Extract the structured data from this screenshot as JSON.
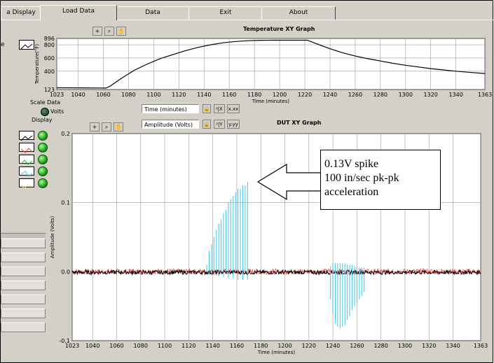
{
  "tabs": [
    {
      "label": "a Display"
    },
    {
      "label": "Load Data"
    },
    {
      "label": "Data"
    },
    {
      "label": "Exit"
    },
    {
      "label": "About"
    }
  ],
  "temp_graph": {
    "title": "Temperature XY Graph",
    "ylabel": "Temperature(°F)",
    "xlabel": "Time (minutes)"
  },
  "dut_graph": {
    "title": "DUT XY Graph",
    "ylabel": "Amplitude (Volts)",
    "xlabel": "Time (minutes)"
  },
  "controls": {
    "scale_data_label": "Scale Data",
    "volts_label": "Volts",
    "display_label": "Display",
    "x_field": "Time (minutes)",
    "y_field": "Amplitude (Volts)",
    "x_format_btn": "x.xx",
    "y_format_btn": "y.yy",
    "x_scale_btn": "ᵡ|X",
    "y_scale_btn": "ᵡ|Y"
  },
  "callout": {
    "line1": "0.13V spike",
    "line2": "100 in/sec pk-pk",
    "line3": "acceleration"
  },
  "chart_data": [
    {
      "type": "line",
      "title": "Temperature XY Graph",
      "xlabel": "Time (minutes)",
      "ylabel": "Temperature(°F)",
      "xlim": [
        1023,
        1363
      ],
      "ylim": [
        123,
        896
      ],
      "x_ticks": [
        1023,
        1040,
        1060,
        1080,
        1100,
        1120,
        1140,
        1160,
        1180,
        1200,
        1220,
        1240,
        1260,
        1280,
        1300,
        1320,
        1340,
        1363
      ],
      "y_ticks": [
        123,
        400,
        600,
        800,
        896
      ],
      "series": [
        {
          "color": "#000000",
          "x": [
            1023,
            1040,
            1055,
            1062,
            1065,
            1075,
            1085,
            1095,
            1105,
            1115,
            1125,
            1135,
            1145,
            1155,
            1165,
            1175,
            1185,
            1195,
            1205,
            1215,
            1222,
            1230,
            1240,
            1250,
            1260,
            1270,
            1280,
            1290,
            1300,
            1310,
            1320,
            1330,
            1340,
            1350,
            1363
          ],
          "y": [
            150,
            148,
            146,
            145,
            170,
            300,
            420,
            510,
            590,
            650,
            710,
            760,
            800,
            830,
            850,
            862,
            868,
            870,
            870,
            870,
            870,
            810,
            740,
            680,
            630,
            590,
            555,
            520,
            490,
            465,
            440,
            420,
            400,
            385,
            365
          ]
        }
      ]
    },
    {
      "type": "line",
      "title": "DUT XY Graph",
      "xlabel": "Time (minutes)",
      "ylabel": "Amplitude (Volts)",
      "xlim": [
        1023,
        1363
      ],
      "ylim": [
        -0.1,
        0.2
      ],
      "x_ticks": [
        1023,
        1040,
        1060,
        1080,
        1100,
        1120,
        1140,
        1160,
        1180,
        1200,
        1220,
        1240,
        1260,
        1280,
        1300,
        1320,
        1340,
        1363
      ],
      "y_ticks": [
        -0.1,
        0.0,
        0.1,
        0.2
      ],
      "baseline": 0.0,
      "series": [
        {
          "color": "#000000",
          "noise": 0.003
        },
        {
          "color": "#ff4040",
          "noise": 0.004
        },
        {
          "color": "#3cc8e6",
          "spikes_x": [
            1135,
            1137,
            1139,
            1141,
            1143,
            1145,
            1147,
            1149,
            1151,
            1153,
            1155,
            1157,
            1159,
            1161,
            1163,
            1165,
            1167,
            1169
          ],
          "spikes_y": [
            0.01,
            0.03,
            0.04,
            0.05,
            0.06,
            0.07,
            0.075,
            0.085,
            0.09,
            0.1,
            0.105,
            0.11,
            0.115,
            0.12,
            0.12,
            0.125,
            0.125,
            0.13
          ],
          "neg_spikes_x": [
            1137,
            1141,
            1145,
            1149,
            1153,
            1157,
            1161,
            1165,
            1169
          ],
          "neg_spikes_y": [
            -0.003,
            -0.005,
            -0.007,
            -0.008,
            -0.01,
            -0.01,
            -0.012,
            -0.012,
            -0.012
          ],
          "dip_x": [
            1238,
            1240,
            1242,
            1244,
            1246,
            1248,
            1250,
            1252,
            1254,
            1256,
            1258,
            1260,
            1262,
            1264,
            1266
          ],
          "dip_y": [
            -0.04,
            -0.06,
            -0.075,
            -0.08,
            -0.082,
            -0.08,
            -0.078,
            -0.07,
            -0.065,
            -0.055,
            -0.05,
            -0.045,
            -0.04,
            -0.035,
            -0.03
          ],
          "dip_pos_y": [
            0.008,
            0.012,
            0.012,
            0.012,
            0.012,
            0.012,
            0.012,
            0.01,
            0.01,
            0.01,
            0.008,
            0.008,
            0.006,
            0.006,
            0.006
          ]
        }
      ]
    }
  ],
  "legend": [
    {
      "color": "#000000"
    },
    {
      "color": "#ff4040"
    },
    {
      "color": "#20c020"
    },
    {
      "color": "#3cc8e6"
    },
    {
      "color": "#f0f080"
    }
  ]
}
